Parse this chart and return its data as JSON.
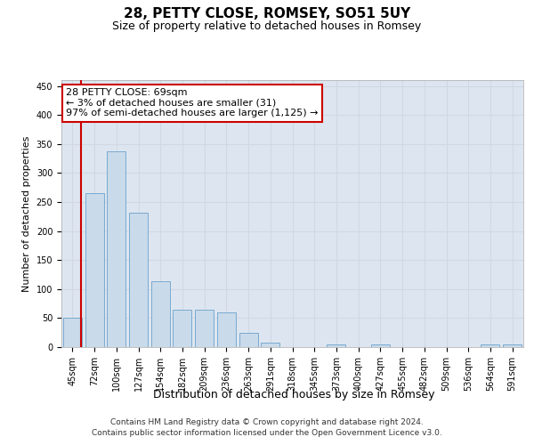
{
  "title": "28, PETTY CLOSE, ROMSEY, SO51 5UY",
  "subtitle": "Size of property relative to detached houses in Romsey",
  "xlabel": "Distribution of detached houses by size in Romsey",
  "ylabel": "Number of detached properties",
  "categories": [
    "45sqm",
    "72sqm",
    "100sqm",
    "127sqm",
    "154sqm",
    "182sqm",
    "209sqm",
    "236sqm",
    "263sqm",
    "291sqm",
    "318sqm",
    "345sqm",
    "373sqm",
    "400sqm",
    "427sqm",
    "455sqm",
    "482sqm",
    "509sqm",
    "536sqm",
    "564sqm",
    "591sqm"
  ],
  "values": [
    50,
    265,
    338,
    231,
    113,
    65,
    65,
    60,
    25,
    8,
    0,
    0,
    5,
    0,
    5,
    0,
    0,
    0,
    0,
    5,
    5
  ],
  "bar_color": "#c9daea",
  "bar_edge_color": "#7aaad0",
  "grid_color": "#d0d8e4",
  "background_color": "#dde6f0",
  "annotation_text": "28 PETTY CLOSE: 69sqm\n← 3% of detached houses are smaller (31)\n97% of semi-detached houses are larger (1,125) →",
  "annotation_box_color": "#cc0000",
  "ylim": [
    0,
    460
  ],
  "yticks": [
    0,
    50,
    100,
    150,
    200,
    250,
    300,
    350,
    400,
    450
  ],
  "footer_line1": "Contains HM Land Registry data © Crown copyright and database right 2024.",
  "footer_line2": "Contains public sector information licensed under the Open Government Licence v3.0.",
  "title_fontsize": 11,
  "subtitle_fontsize": 9,
  "xlabel_fontsize": 9,
  "ylabel_fontsize": 8,
  "tick_fontsize": 7,
  "annotation_fontsize": 8,
  "footer_fontsize": 6.5
}
